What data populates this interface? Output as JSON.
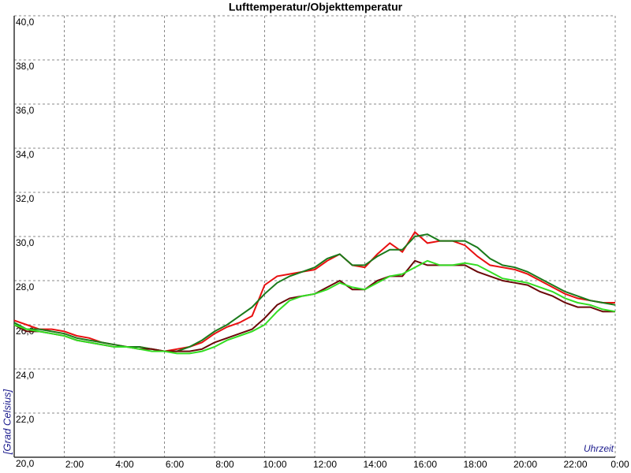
{
  "chart_data": {
    "type": "line",
    "title": "Lufttemperatur/Objekttemperatur",
    "ylabel": "[Grad Celsius]",
    "xlabel": "Uhrzeit",
    "x": [
      0,
      0.5,
      1,
      1.5,
      2,
      2.5,
      3,
      3.5,
      4,
      4.5,
      5,
      5.5,
      6,
      6.5,
      7,
      7.5,
      8,
      8.5,
      9,
      9.5,
      10,
      10.5,
      11,
      11.5,
      12,
      12.5,
      13,
      13.5,
      14,
      14.5,
      15,
      15.5,
      16,
      16.5,
      17,
      17.5,
      18,
      18.5,
      19,
      19.5,
      20,
      20.5,
      21,
      21.5,
      22,
      22.5,
      23,
      23.5,
      24
    ],
    "series": [
      {
        "color": "#e81010",
        "values": [
          26.2,
          26.0,
          25.8,
          25.8,
          25.7,
          25.5,
          25.4,
          25.2,
          25.1,
          25.0,
          25.0,
          24.9,
          24.8,
          24.9,
          25.0,
          25.2,
          25.6,
          25.9,
          26.1,
          26.4,
          27.8,
          28.2,
          28.3,
          28.4,
          28.5,
          28.9,
          29.2,
          28.7,
          28.6,
          29.2,
          29.7,
          29.3,
          30.2,
          29.7,
          29.8,
          29.8,
          29.6,
          29.1,
          28.7,
          28.6,
          28.5,
          28.3,
          28.0,
          27.7,
          27.4,
          27.2,
          27.1,
          27.0,
          27.0
        ]
      },
      {
        "color": "#1a7a1a",
        "values": [
          26.1,
          25.8,
          25.8,
          25.7,
          25.6,
          25.4,
          25.3,
          25.2,
          25.1,
          25.0,
          25.0,
          24.9,
          24.8,
          24.8,
          25.0,
          25.3,
          25.7,
          26.0,
          26.4,
          26.8,
          27.4,
          27.9,
          28.2,
          28.4,
          28.6,
          29.0,
          29.2,
          28.7,
          28.7,
          29.1,
          29.4,
          29.4,
          30.0,
          30.1,
          29.8,
          29.8,
          29.8,
          29.5,
          29.0,
          28.7,
          28.6,
          28.4,
          28.1,
          27.8,
          27.5,
          27.3,
          27.1,
          27.0,
          26.9
        ]
      },
      {
        "color": "#6a0808",
        "values": [
          26.0,
          25.7,
          25.7,
          25.6,
          25.5,
          25.3,
          25.2,
          25.1,
          25.0,
          25.0,
          24.9,
          24.9,
          24.8,
          24.8,
          24.8,
          24.9,
          25.2,
          25.4,
          25.6,
          25.8,
          26.3,
          26.9,
          27.2,
          27.3,
          27.4,
          27.7,
          28.0,
          27.6,
          27.6,
          28.0,
          28.2,
          28.2,
          28.9,
          28.7,
          28.7,
          28.7,
          28.7,
          28.4,
          28.2,
          28.0,
          27.9,
          27.8,
          27.5,
          27.3,
          27.0,
          26.8,
          26.8,
          26.6,
          26.6
        ]
      },
      {
        "color": "#33dd22",
        "values": [
          26.0,
          25.8,
          25.7,
          25.6,
          25.5,
          25.3,
          25.2,
          25.1,
          25.0,
          25.0,
          24.9,
          24.8,
          24.8,
          24.7,
          24.7,
          24.8,
          25.0,
          25.3,
          25.5,
          25.7,
          26.0,
          26.6,
          27.1,
          27.3,
          27.4,
          27.6,
          27.9,
          27.7,
          27.6,
          27.9,
          28.2,
          28.3,
          28.6,
          28.9,
          28.7,
          28.7,
          28.8,
          28.7,
          28.4,
          28.1,
          28.0,
          27.9,
          27.7,
          27.5,
          27.2,
          27.0,
          26.9,
          26.7,
          26.6
        ]
      }
    ],
    "xlim": [
      0,
      24
    ],
    "xticks": [
      {
        "value": 2,
        "label": "2:00"
      },
      {
        "value": 4,
        "label": "4:00"
      },
      {
        "value": 6,
        "label": "6:00"
      },
      {
        "value": 8,
        "label": "8:00"
      },
      {
        "value": 10,
        "label": "10:00"
      },
      {
        "value": 12,
        "label": "12:00"
      },
      {
        "value": 14,
        "label": "14:00"
      },
      {
        "value": 16,
        "label": "16:00"
      },
      {
        "value": 18,
        "label": "18:00"
      },
      {
        "value": 20,
        "label": "20:00"
      },
      {
        "value": 22,
        "label": "22:00"
      },
      {
        "value": 24,
        "label": "0:00"
      }
    ],
    "ylim": [
      20,
      40
    ],
    "yticks": [
      {
        "value": 20,
        "label": "20,0"
      },
      {
        "value": 22,
        "label": "22,0"
      },
      {
        "value": 24,
        "label": "24,0"
      },
      {
        "value": 26,
        "label": "26,0"
      },
      {
        "value": 28,
        "label": "28,0"
      },
      {
        "value": 30,
        "label": "30,0"
      },
      {
        "value": 32,
        "label": "32,0"
      },
      {
        "value": 34,
        "label": "34,0"
      },
      {
        "value": 36,
        "label": "36,0"
      },
      {
        "value": 38,
        "label": "38,0"
      },
      {
        "value": 40,
        "label": "40,0"
      }
    ],
    "grid": true
  }
}
